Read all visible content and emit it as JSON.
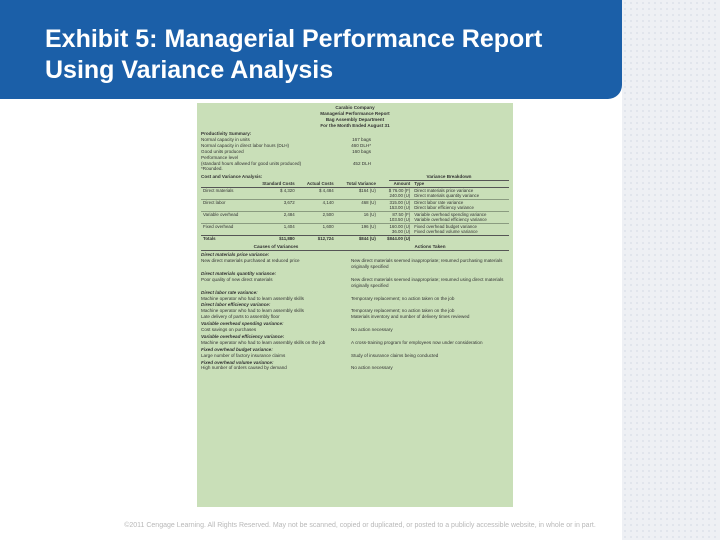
{
  "slide": {
    "title": "Exhibit 5: Managerial Performance Report Using Variance Analysis",
    "footer": "©2011 Cengage Learning. All Rights Reserved. May not be scanned, copied or duplicated, or posted to a publicly accessible website, in whole or in part."
  },
  "report": {
    "company": "Carabio Company",
    "report_name": "Managerial Performance Report",
    "department": "Bag Assembly Department",
    "period": "For the Month Ended August 31",
    "productivity": {
      "heading": "Productivity Summary:",
      "rows": [
        {
          "label": "Normal capacity in units",
          "value": "167 bags"
        },
        {
          "label": "Normal capacity in direct labor hours (DLH)",
          "value": "460 DLH*"
        },
        {
          "label": "Good units produced",
          "value": "160 bags"
        },
        {
          "label": "Performance level",
          "value": ""
        },
        {
          "label": "(standard hours allowed for good units produced)",
          "value": "452 DLH"
        }
      ],
      "note": "*Rounded."
    },
    "cva": {
      "heading": "Cost and Variance Analysis:",
      "breakdown_heading": "Variance Breakdown",
      "columns": [
        "",
        "Standard Costs",
        "Actual Costs",
        "Total Variance",
        "Amount",
        "Type"
      ],
      "rows": [
        {
          "item": "Direct materials",
          "std": "$ 4,320",
          "act": "$ 4,484",
          "tv": "$164 (U)",
          "amt": "$ 76.00 (F)",
          "type": "Direct materials price variance",
          "first": true
        },
        {
          "item": "",
          "std": "",
          "act": "",
          "tv": "",
          "amt": "240.00 (U)",
          "type": "Direct materials quantity variance",
          "first": false
        },
        {
          "item": "Direct labor",
          "std": "3,672",
          "act": "4,140",
          "tv": "468 (U)",
          "amt": "315.00 (U)",
          "type": "Direct labor rate variance",
          "first": true
        },
        {
          "item": "",
          "std": "",
          "act": "",
          "tv": "",
          "amt": "153.00 (U)",
          "type": "Direct labor efficiency variance",
          "first": false
        },
        {
          "item": "Variable overhead",
          "std": "2,484",
          "act": "2,500",
          "tv": "16 (U)",
          "amt": "87.50 (F)",
          "type": "Variable overhead spending variance",
          "first": true
        },
        {
          "item": "",
          "std": "",
          "act": "",
          "tv": "",
          "amt": "103.50 (U)",
          "type": "Variable overhead efficiency variance",
          "first": false
        },
        {
          "item": "Fixed overhead",
          "std": "1,404",
          "act": "1,600",
          "tv": "196 (U)",
          "amt": "160.00 (U)",
          "type": "Fixed overhead budget variance",
          "first": true
        },
        {
          "item": "",
          "std": "",
          "act": "",
          "tv": "",
          "amt": "36.00 (U)",
          "type": "Fixed overhead volume variance",
          "first": false
        }
      ],
      "totals": {
        "item": "Totals",
        "std": "$11,880",
        "act": "$12,724",
        "tv": "$844 (U)",
        "amt": "$844.00 (U)",
        "type": ""
      }
    },
    "causes": {
      "causes_heading": "Causes of Variances",
      "actions_heading": "Actions Taken",
      "blocks": [
        {
          "title": "Direct materials price variance:",
          "rows": [
            {
              "cause": "New direct materials purchased at reduced price",
              "action": "New direct materials seemed inappropriate; resumed purchasing materials originally specified"
            }
          ]
        },
        {
          "title": "Direct materials quantity variance:",
          "rows": [
            {
              "cause": "Poor quality of new direct materials",
              "action": "New direct materials seemed inappropriate; resumed using direct materials originally specified"
            }
          ]
        },
        {
          "title": "Direct labor rate variance:",
          "rows": [
            {
              "cause": "Machine operator who had to learn assembly skills",
              "action": "Temporary replacement; no action taken on the job"
            }
          ]
        },
        {
          "title": "Direct labor efficiency variance:",
          "rows": [
            {
              "cause": "Machine operator who had to learn assembly skills",
              "action": "Temporary replacement; no action taken on the job"
            },
            {
              "cause": "Late delivery of parts to assembly floor",
              "action": "Materials inventory and number of delivery times reviewed"
            }
          ]
        },
        {
          "title": "Variable overhead spending variance:",
          "rows": [
            {
              "cause": "Cost savings on purchases",
              "action": "No action necessary"
            }
          ]
        },
        {
          "title": "Variable overhead efficiency variance:",
          "rows": [
            {
              "cause": "Machine operator who had to learn assembly skills on the job",
              "action": "A cross-training program for employees now under consideration"
            }
          ]
        },
        {
          "title": "Fixed overhead budget variance:",
          "rows": [
            {
              "cause": "Large number of factory insurance claims",
              "action": "Study of insurance claims being conducted"
            }
          ]
        },
        {
          "title": "Fixed overhead volume variance:",
          "rows": [
            {
              "cause": "High number of orders caused by demand",
              "action": "No action necessary"
            }
          ]
        }
      ]
    }
  }
}
